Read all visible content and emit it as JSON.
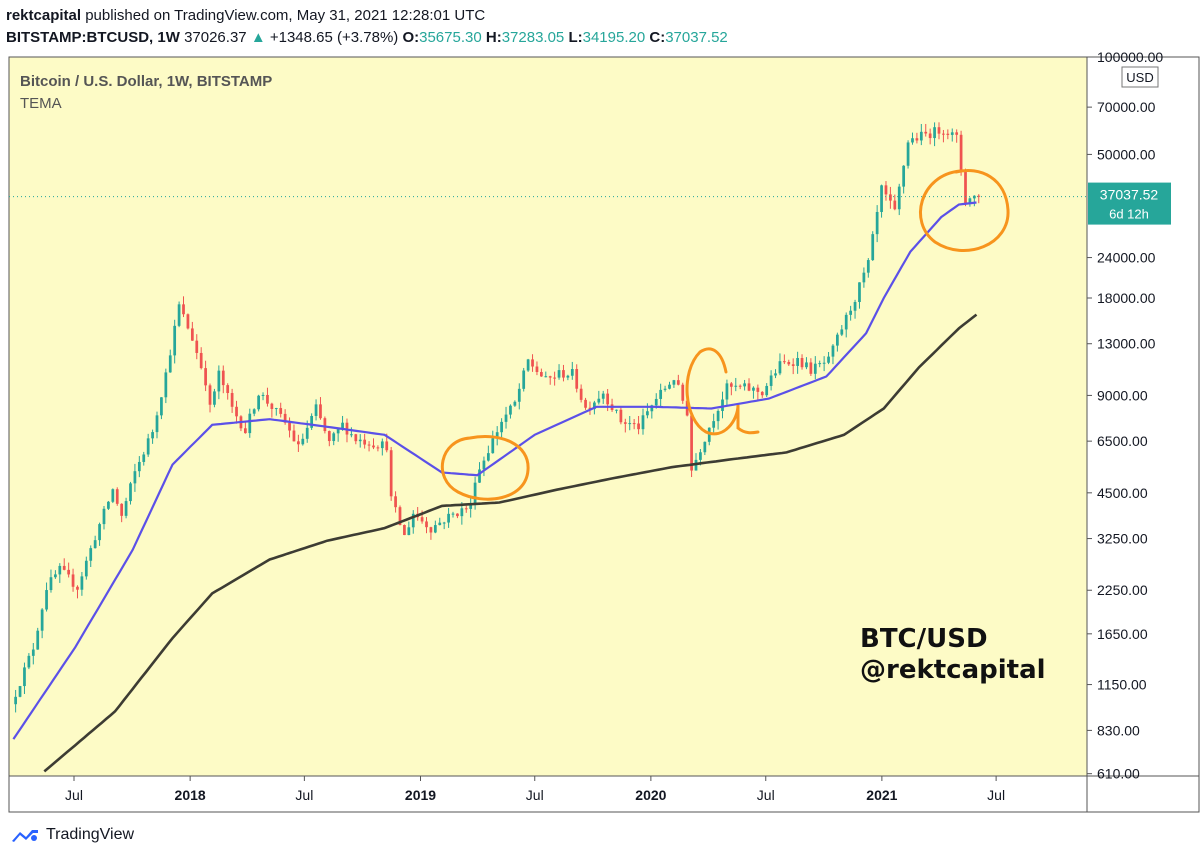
{
  "header": {
    "author": "rektcapital",
    "published": "published on TradingView.com, May 31, 2021 12:28:01 UTC",
    "symbol": "BITSTAMP:BTCUSD, 1W",
    "last": "37026.37",
    "arrow": "▲",
    "change": "+1348.65 (+3.78%)",
    "o_label": "O:",
    "o": "35675.30",
    "h_label": "H:",
    "h": "37283.05",
    "l_label": "L:",
    "l": "34195.20",
    "c_label": "C:",
    "c": "37037.52"
  },
  "legend": {
    "title": "Bitcoin / U.S. Dollar, 1W, BITSTAMP",
    "indicator": "TEMA"
  },
  "watermark": {
    "line1": "BTC/USD",
    "line2": "@rektcapital"
  },
  "price_badge": {
    "price": "37037.52",
    "countdown": "6d 12h"
  },
  "currency": "USD",
  "brand": "TradingView",
  "colors": {
    "background": "#fdfbc6",
    "bull": "#26a69a",
    "bear": "#ef5350",
    "tema_fast": "#5b50e8",
    "tema_slow": "#3d3c33",
    "annotation": "#f7941d"
  },
  "icons": {
    "brand": "tradingview-logo-icon",
    "change": "up-triangle-icon"
  },
  "chart_data": {
    "type": "candlestick",
    "scale": "log",
    "ylim": [
      600,
      100000
    ],
    "y_ticks": [
      "100000.00",
      "70000.00",
      "50000.00",
      "24000.00",
      "18000.00",
      "13000.00",
      "9000.00",
      "6500.00",
      "4500.00",
      "3250.00",
      "2250.00",
      "1650.00",
      "1150.00",
      "830.00",
      "610.00"
    ],
    "x_ticks": [
      "Jul",
      "2018",
      "Jul",
      "2019",
      "Jul",
      "2020",
      "Jul",
      "2021",
      "Jul"
    ],
    "series": [
      {
        "name": "BTCUSD",
        "points": [
          [
            "2017-03-27",
            1000
          ],
          [
            "2017-05-01",
            1500
          ],
          [
            "2017-05-22",
            2300
          ],
          [
            "2017-06-12",
            2600
          ],
          [
            "2017-07-10",
            2300
          ],
          [
            "2017-08-07",
            3300
          ],
          [
            "2017-09-04",
            4600
          ],
          [
            "2017-09-18",
            3800
          ],
          [
            "2017-10-09",
            5200
          ],
          [
            "2017-11-06",
            7000
          ],
          [
            "2017-11-27",
            10500
          ],
          [
            "2017-12-18",
            17000
          ],
          [
            "2018-01-08",
            13500
          ],
          [
            "2018-01-29",
            10000
          ],
          [
            "2018-02-05",
            8200
          ],
          [
            "2018-02-19",
            10500
          ],
          [
            "2018-03-12",
            8200
          ],
          [
            "2018-04-02",
            7000
          ],
          [
            "2018-04-23",
            9200
          ],
          [
            "2018-05-14",
            8300
          ],
          [
            "2018-06-04",
            7400
          ],
          [
            "2018-06-25",
            6200
          ],
          [
            "2018-07-23",
            8200
          ],
          [
            "2018-08-13",
            6400
          ],
          [
            "2018-09-03",
            7300
          ],
          [
            "2018-09-24",
            6600
          ],
          [
            "2018-10-22",
            6400
          ],
          [
            "2018-11-12",
            6300
          ],
          [
            "2018-11-19",
            4300
          ],
          [
            "2018-12-10",
            3300
          ],
          [
            "2018-12-24",
            3900
          ],
          [
            "2019-01-21",
            3500
          ],
          [
            "2019-02-18",
            3800
          ],
          [
            "2019-03-25",
            4100
          ],
          [
            "2019-04-01",
            5000
          ],
          [
            "2019-05-13",
            7500
          ],
          [
            "2019-06-03",
            8500
          ],
          [
            "2019-06-24",
            11500
          ],
          [
            "2019-07-22",
            10000
          ],
          [
            "2019-08-12",
            10500
          ],
          [
            "2019-09-02",
            10500
          ],
          [
            "2019-09-23",
            8200
          ],
          [
            "2019-10-21",
            9200
          ],
          [
            "2019-11-18",
            7500
          ],
          [
            "2019-12-16",
            7200
          ],
          [
            "2020-01-13",
            8800
          ],
          [
            "2020-02-10",
            10200
          ],
          [
            "2020-03-02",
            8000
          ],
          [
            "2020-03-09",
            5300
          ],
          [
            "2020-04-06",
            7200
          ],
          [
            "2020-05-04",
            9500
          ],
          [
            "2020-06-01",
            9500
          ],
          [
            "2020-06-29",
            9200
          ],
          [
            "2020-07-27",
            11200
          ],
          [
            "2020-08-24",
            11600
          ],
          [
            "2020-09-14",
            10800
          ],
          [
            "2020-10-12",
            11500
          ],
          [
            "2020-10-26",
            13500
          ],
          [
            "2020-11-23",
            18000
          ],
          [
            "2020-12-14",
            23000
          ],
          [
            "2021-01-04",
            39000
          ],
          [
            "2021-01-25",
            33000
          ],
          [
            "2021-02-15",
            55000
          ],
          [
            "2021-03-08",
            57000
          ],
          [
            "2021-04-12",
            60000
          ],
          [
            "2021-05-03",
            56000
          ],
          [
            "2021-05-17",
            36000
          ],
          [
            "2021-05-31",
            37037.52
          ]
        ]
      },
      {
        "name": "TEMA fast",
        "points": [
          [
            "2017-03-27",
            780
          ],
          [
            "2017-07-03",
            1500
          ],
          [
            "2017-10-02",
            3000
          ],
          [
            "2017-12-04",
            5500
          ],
          [
            "2018-02-05",
            7300
          ],
          [
            "2018-05-07",
            7600
          ],
          [
            "2018-08-06",
            7200
          ],
          [
            "2018-11-05",
            6800
          ],
          [
            "2019-02-04",
            5200
          ],
          [
            "2019-04-01",
            5100
          ],
          [
            "2019-07-01",
            6800
          ],
          [
            "2019-10-07",
            8300
          ],
          [
            "2020-01-06",
            8300
          ],
          [
            "2020-04-06",
            8200
          ],
          [
            "2020-07-06",
            8800
          ],
          [
            "2020-10-05",
            10300
          ],
          [
            "2020-12-07",
            14000
          ],
          [
            "2021-01-04",
            18000
          ],
          [
            "2021-02-15",
            25000
          ],
          [
            "2021-04-05",
            32000
          ],
          [
            "2021-05-03",
            35000
          ],
          [
            "2021-05-31",
            35500
          ]
        ]
      },
      {
        "name": "TEMA slow",
        "points": [
          [
            "2017-05-15",
            620
          ],
          [
            "2017-09-04",
            950
          ],
          [
            "2017-12-04",
            1600
          ],
          [
            "2018-02-05",
            2200
          ],
          [
            "2018-05-07",
            2800
          ],
          [
            "2018-08-06",
            3200
          ],
          [
            "2018-11-05",
            3500
          ],
          [
            "2019-02-04",
            4100
          ],
          [
            "2019-05-06",
            4200
          ],
          [
            "2019-08-05",
            4600
          ],
          [
            "2019-11-04",
            5000
          ],
          [
            "2020-02-03",
            5400
          ],
          [
            "2020-05-04",
            5700
          ],
          [
            "2020-08-03",
            6000
          ],
          [
            "2020-11-02",
            6800
          ],
          [
            "2021-01-04",
            8200
          ],
          [
            "2021-03-01",
            11000
          ],
          [
            "2021-05-03",
            14500
          ],
          [
            "2021-05-31",
            16000
          ]
        ]
      }
    ]
  }
}
